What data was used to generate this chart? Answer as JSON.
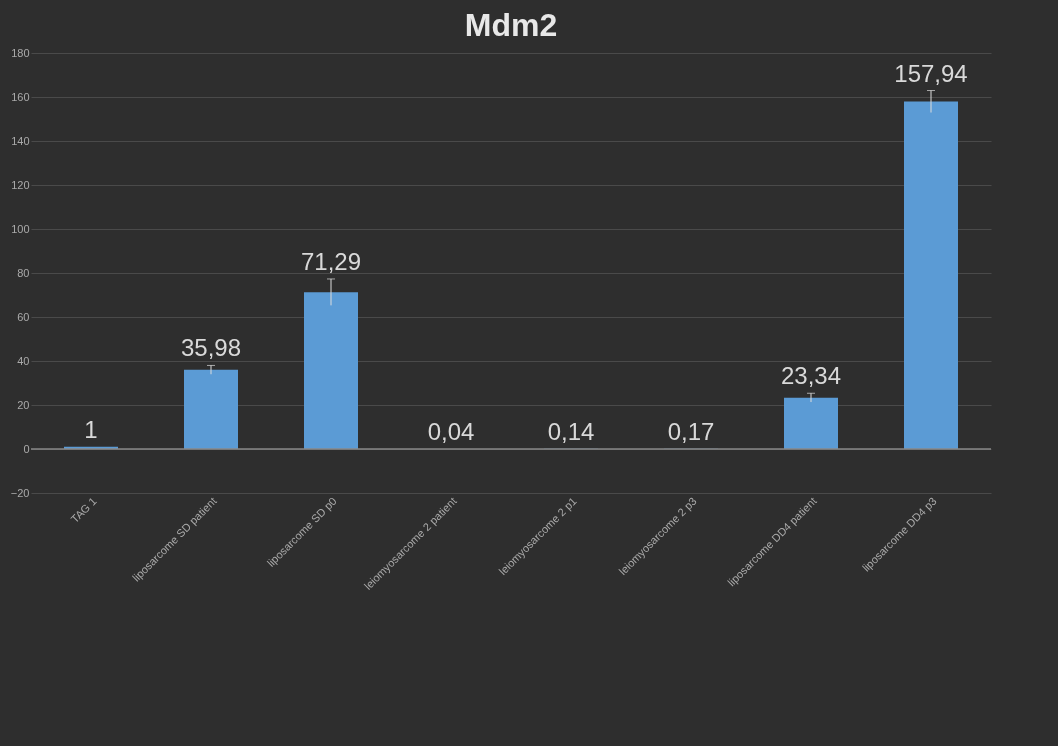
{
  "chart_data": {
    "type": "bar",
    "title": "Mdm2",
    "categories": [
      "TAG 1",
      "liposarcome SD patient",
      "liposarcome SD p0",
      "leiomyosarcome 2 patient",
      "leiomyosarcome 2 p1",
      "leiomyosarcome 2 p3",
      "liposarcome DD4 patient",
      "liposarcome DD4 p3"
    ],
    "values": [
      1,
      35.98,
      71.29,
      0.04,
      0.14,
      0.17,
      23.34,
      157.94
    ],
    "value_labels": [
      "1",
      "35,98",
      "71,29",
      "0,04",
      "0,14",
      "0,17",
      "23,34",
      "157,94"
    ],
    "errors": [
      null,
      2,
      6,
      null,
      null,
      null,
      2,
      5
    ],
    "color": "#5b9bd5",
    "ylim": [
      -20,
      180
    ],
    "yticks": [
      -20,
      0,
      20,
      40,
      60,
      80,
      100,
      120,
      140,
      160,
      180
    ],
    "grid": "y"
  }
}
